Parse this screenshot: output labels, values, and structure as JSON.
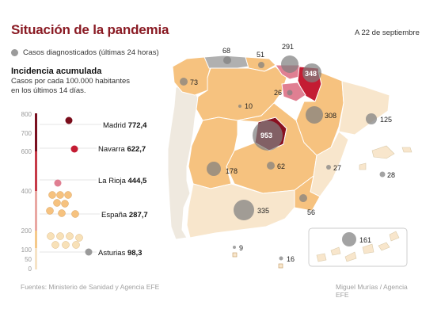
{
  "title": "Situación de la pandemia",
  "date": "A 22 de septiembre",
  "legend": {
    "cases_label": "Casos diagnosticados (últimas 24 horas)"
  },
  "incidence": {
    "title": "Incidencia acumulada",
    "subtitle": "Casos por cada 100.000 habitantes en los últimos 14 días.",
    "axis_ticks": [
      "800",
      "700",
      "600",
      "400",
      "200",
      "100",
      "50",
      "0"
    ],
    "labels": [
      {
        "name": "Madrid",
        "value": "772,4"
      },
      {
        "name": "Navarra",
        "value": "622,7"
      },
      {
        "name": "La Rioja",
        "value": "444,5"
      },
      {
        "name": "España",
        "value": "287,7"
      },
      {
        "name": "Asturias",
        "value": "98,3"
      }
    ]
  },
  "map_cases": [
    {
      "region": "Galicia",
      "value": "73"
    },
    {
      "region": "Asturias",
      "value": "68"
    },
    {
      "region": "Cantabria",
      "value": "51"
    },
    {
      "region": "País Vasco",
      "value": "291"
    },
    {
      "region": "Navarra",
      "value": "348"
    },
    {
      "region": "La Rioja",
      "value": "26"
    },
    {
      "region": "Castilla y León",
      "value": "10"
    },
    {
      "region": "Aragón",
      "value": "308"
    },
    {
      "region": "Cataluña",
      "value": "125"
    },
    {
      "region": "Madrid",
      "value": "953"
    },
    {
      "region": "Extremadura",
      "value": "178"
    },
    {
      "region": "Castilla-La Mancha",
      "value": "62"
    },
    {
      "region": "Comunidad Valenciana",
      "value": "27"
    },
    {
      "region": "Baleares",
      "value": "28"
    },
    {
      "region": "Andalucía",
      "value": "335"
    },
    {
      "region": "Murcia",
      "value": "56"
    },
    {
      "region": "Canarias",
      "value": "161"
    },
    {
      "region": "Ceuta",
      "value": "9"
    },
    {
      "region": "Melilla",
      "value": "16"
    }
  ],
  "colors": {
    "title": "#8a1b24",
    "light": "#f8e6cc",
    "medium": "#f6c27f",
    "darkred": "#8a1020",
    "red": "#c41c33",
    "pink": "#e78798",
    "bubble": "#8c8c8c",
    "gray_region": "#b0b0b0"
  },
  "footer": {
    "source": "Fuentes: Ministerio de Sanidad y Agencia EFE",
    "credit": "Miguel Murías / Agencia EFE"
  }
}
